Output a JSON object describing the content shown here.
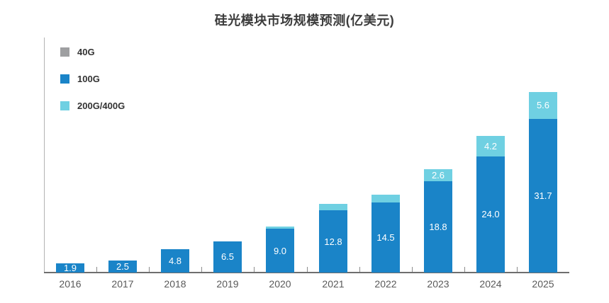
{
  "chart_data": {
    "type": "bar",
    "stacked": true,
    "title": "硅光模块市场规模预测(亿美元)",
    "categories": [
      "2016",
      "2017",
      "2018",
      "2019",
      "2020",
      "2021",
      "2022",
      "2023",
      "2024",
      "2025"
    ],
    "series": [
      {
        "name": "40G",
        "color": "#9e9fa1",
        "values": [
          0,
          0,
          0,
          0,
          0,
          0,
          0,
          0,
          0,
          0
        ],
        "labels": [
          "",
          "",
          "",
          "",
          "",
          "",
          "",
          "",
          "",
          ""
        ]
      },
      {
        "name": "100G",
        "color": "#1a84c8",
        "values": [
          1.9,
          2.5,
          4.8,
          6.5,
          9.0,
          12.8,
          14.5,
          18.8,
          24.0,
          31.7
        ],
        "labels": [
          "1.9",
          "2.5",
          "4.8",
          "6.5",
          "9.0",
          "12.8",
          "14.5",
          "18.8",
          "24.0",
          "31.7"
        ]
      },
      {
        "name": "200G/400G",
        "color": "#6fd0e2",
        "values": [
          0,
          0,
          0,
          0,
          0.5,
          1.3,
          1.6,
          2.6,
          4.2,
          5.6
        ],
        "labels": [
          "",
          "",
          "",
          "",
          "",
          "",
          "",
          "2.6",
          "4.2",
          "5.6"
        ]
      }
    ],
    "xlabel": "",
    "ylabel": "",
    "ylim": [
      0,
      48.5
    ],
    "grid": false,
    "legend_position": "top-left-vertical"
  },
  "appearance": {
    "background": "#ffffff",
    "title_color": "#3c3c3c",
    "x_axis_line_color": "#6e6e6e",
    "y_axis_line_color": "#b3b3b3",
    "tick_color": "#8c8c8c",
    "x_label_color": "#595959",
    "value_label_color": "#ffffff",
    "legend_text_color": "#333333"
  }
}
